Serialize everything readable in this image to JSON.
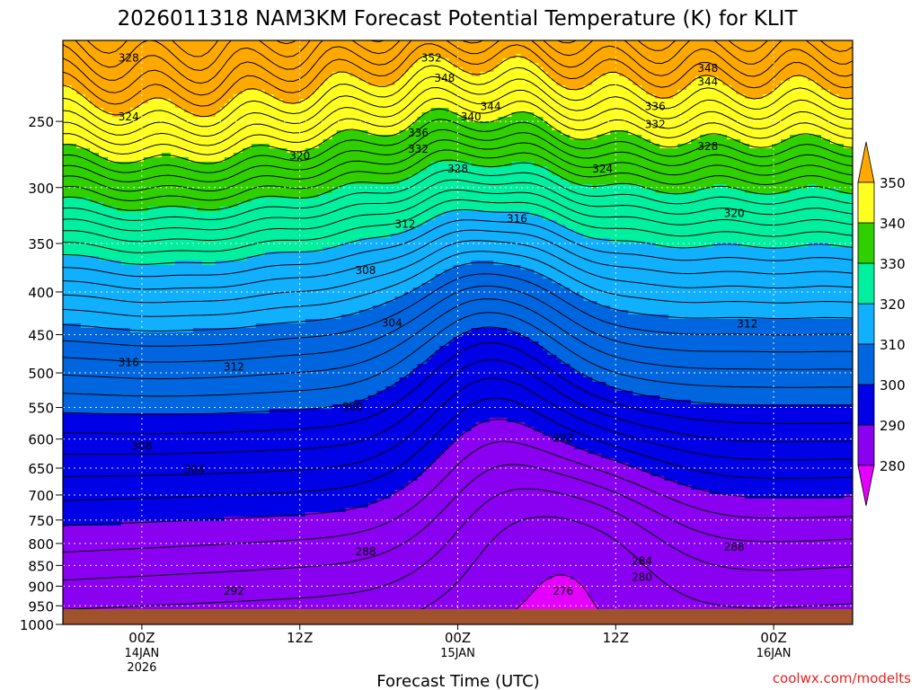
{
  "chart_data": {
    "type": "heatmap",
    "title": "2026011318 NAM3KM Forecast Potential Temperature (K) for KLIT",
    "xlabel": "Forecast Time (UTC)",
    "ylabel": "",
    "credit": "coolwx.com/modelts",
    "x_ticks": [
      {
        "hour": 6,
        "label": "00Z",
        "date1": "14JAN",
        "date2": "2026"
      },
      {
        "hour": 18,
        "label": "12Z",
        "date1": "",
        "date2": ""
      },
      {
        "hour": 30,
        "label": "00Z",
        "date1": "15JAN",
        "date2": ""
      },
      {
        "hour": 42,
        "label": "12Z",
        "date1": "",
        "date2": ""
      },
      {
        "hour": 54,
        "label": "00Z",
        "date1": "16JAN",
        "date2": ""
      }
    ],
    "xlim": [
      0,
      60
    ],
    "ylim": [
      1000,
      200
    ],
    "y_ticks": [
      1000,
      950,
      900,
      850,
      800,
      750,
      700,
      650,
      600,
      550,
      500,
      450,
      400,
      350,
      300,
      250
    ],
    "y_tick_labels": [
      "1000",
      "950",
      "900",
      "850",
      "800",
      "750",
      "700",
      "650",
      "600",
      "550",
      "500",
      "450",
      "400",
      "350",
      "300",
      "250"
    ],
    "colorbar": {
      "levels": [
        280,
        290,
        300,
        310,
        320,
        330,
        340,
        350
      ],
      "labels": [
        "280",
        "290",
        "300",
        "310",
        "320",
        "330",
        "340",
        "350"
      ],
      "colors": [
        "#e400ff",
        "#8a00f0",
        "#0000e6",
        "#0066e0",
        "#10b0ff",
        "#00f0a0",
        "#30d000",
        "#ffff20",
        "#ffa800"
      ]
    },
    "contour_labels": [
      {
        "text": "352",
        "hour": 28.0,
        "p": 210
      },
      {
        "text": "348",
        "hour": 29.0,
        "p": 222
      },
      {
        "text": "348",
        "hour": 49.0,
        "p": 216
      },
      {
        "text": "344",
        "hour": 49.0,
        "p": 224
      },
      {
        "text": "344",
        "hour": 32.5,
        "p": 240
      },
      {
        "text": "340",
        "hour": 31.0,
        "p": 247
      },
      {
        "text": "336",
        "hour": 45.0,
        "p": 240
      },
      {
        "text": "336",
        "hour": 27.0,
        "p": 258
      },
      {
        "text": "332",
        "hour": 45.0,
        "p": 252
      },
      {
        "text": "332",
        "hour": 27.0,
        "p": 270
      },
      {
        "text": "328",
        "hour": 5.0,
        "p": 210
      },
      {
        "text": "328",
        "hour": 49.0,
        "p": 268
      },
      {
        "text": "328",
        "hour": 30.0,
        "p": 285
      },
      {
        "text": "324",
        "hour": 5.0,
        "p": 247
      },
      {
        "text": "324",
        "hour": 41.0,
        "p": 285
      },
      {
        "text": "320",
        "hour": 18.0,
        "p": 275
      },
      {
        "text": "320",
        "hour": 51.0,
        "p": 322
      },
      {
        "text": "316",
        "hour": 34.5,
        "p": 327
      },
      {
        "text": "312",
        "hour": 26.0,
        "p": 332
      },
      {
        "text": "312",
        "hour": 52.0,
        "p": 437
      },
      {
        "text": "316",
        "hour": 5.0,
        "p": 486
      },
      {
        "text": "312",
        "hour": 13.0,
        "p": 492
      },
      {
        "text": "308",
        "hour": 23.0,
        "p": 377
      },
      {
        "text": "304",
        "hour": 25.0,
        "p": 436
      },
      {
        "text": "300",
        "hour": 22.0,
        "p": 549
      },
      {
        "text": "308",
        "hour": 6.0,
        "p": 612
      },
      {
        "text": "304",
        "hour": 10.0,
        "p": 652
      },
      {
        "text": "292",
        "hour": 38.0,
        "p": 598
      },
      {
        "text": "288",
        "hour": 23.0,
        "p": 818
      },
      {
        "text": "288",
        "hour": 51.0,
        "p": 808
      },
      {
        "text": "284",
        "hour": 44.0,
        "p": 840
      },
      {
        "text": "280",
        "hour": 44.0,
        "p": 878
      },
      {
        "text": "276",
        "hour": 38.0,
        "p": 913
      },
      {
        "text": "292",
        "hour": 13.0,
        "p": 912
      }
    ]
  }
}
